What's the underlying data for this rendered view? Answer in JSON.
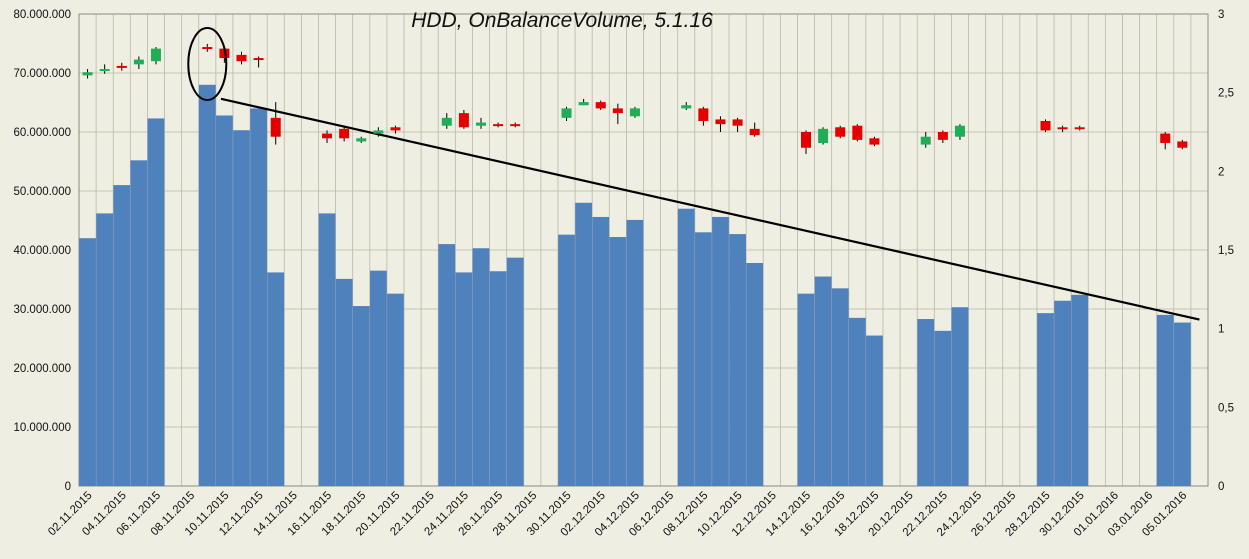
{
  "chart_data": {
    "type": "bar",
    "title": "HDD, OnBalanceVolume, 5.1.16",
    "xlabel": "",
    "ylabel": "",
    "y_left_range": [
      0,
      80000000
    ],
    "y_left_ticks": [
      "0",
      "10.000.000",
      "20.000.000",
      "30.000.000",
      "40.000.000",
      "50.000.000",
      "60.000.000",
      "70.000.000",
      "80.000.000"
    ],
    "y_right_range": [
      0,
      3
    ],
    "y_right_ticks": [
      "0",
      "0,5",
      "1",
      "1,5",
      "2",
      "2,5",
      "3"
    ],
    "x_tick_labels": [
      "02.11.2015",
      "04.11.2015",
      "06.11.2015",
      "08.11.2015",
      "10.11.2015",
      "12.11.2015",
      "14.11.2015",
      "16.11.2015",
      "18.11.2015",
      "20.11.2015",
      "22.11.2015",
      "24.11.2015",
      "26.11.2015",
      "28.11.2015",
      "30.11.2015",
      "02.12.2015",
      "04.12.2015",
      "06.12.2015",
      "08.12.2015",
      "10.12.2015",
      "12.12.2015",
      "14.12.2015",
      "16.12.2015",
      "18.12.2015",
      "20.12.2015",
      "22.12.2015",
      "24.12.2015",
      "26.12.2015",
      "28.12.2015",
      "30.12.2015",
      "01.01.2016",
      "03.01.2016",
      "05.01.2016"
    ],
    "x_dates": [
      "02.11.2015",
      "03.11.2015",
      "04.11.2015",
      "05.11.2015",
      "06.11.2015",
      "07.11.2015",
      "08.11.2015",
      "09.11.2015",
      "10.11.2015",
      "11.11.2015",
      "12.11.2015",
      "13.11.2015",
      "14.11.2015",
      "15.11.2015",
      "16.11.2015",
      "17.11.2015",
      "18.11.2015",
      "19.11.2015",
      "20.11.2015",
      "21.11.2015",
      "22.11.2015",
      "23.11.2015",
      "24.11.2015",
      "25.11.2015",
      "26.11.2015",
      "27.11.2015",
      "28.11.2015",
      "29.11.2015",
      "30.11.2015",
      "01.12.2015",
      "02.12.2015",
      "03.12.2015",
      "04.12.2015",
      "05.12.2015",
      "06.12.2015",
      "07.12.2015",
      "08.12.2015",
      "09.12.2015",
      "10.12.2015",
      "11.12.2015",
      "12.12.2015",
      "13.12.2015",
      "14.12.2015",
      "15.12.2015",
      "16.12.2015",
      "17.12.2015",
      "18.12.2015",
      "19.12.2015",
      "20.12.2015",
      "21.12.2015",
      "22.12.2015",
      "23.12.2015",
      "24.12.2015",
      "25.12.2015",
      "26.12.2015",
      "27.12.2015",
      "28.12.2015",
      "29.12.2015",
      "30.12.2015",
      "31.12.2015",
      "01.01.2016",
      "02.01.2016",
      "03.01.2016",
      "04.01.2016",
      "05.01.2016",
      "06.01.2016"
    ],
    "series": [
      {
        "values": [
          42000000,
          46200000,
          51000000,
          55200000,
          62300000,
          null,
          null,
          68000000,
          62800000,
          60300000,
          64000000,
          36200000,
          null,
          null,
          46200000,
          35100000,
          30500000,
          36500000,
          32600000,
          null,
          null,
          41000000,
          36200000,
          40300000,
          36400000,
          38700000,
          null,
          null,
          42600000,
          48000000,
          45600000,
          42200000,
          45100000,
          null,
          null,
          47000000,
          43000000,
          45600000,
          42700000,
          37800000,
          null,
          null,
          32600000,
          35500000,
          33500000,
          28500000,
          25500000,
          null,
          null,
          28300000,
          26300000,
          30300000,
          null,
          null,
          null,
          null,
          29300000,
          31400000,
          32400000,
          null,
          null,
          null,
          null,
          29000000,
          27700000,
          null
        ]
      },
      {
        "candles": [
          {
            "date": "02.11.2015",
            "open": 2.61,
            "close": 2.63,
            "high": 2.65,
            "low": 2.59
          },
          {
            "date": "03.11.2015",
            "open": 2.64,
            "close": 2.65,
            "high": 2.68,
            "low": 2.62
          },
          {
            "date": "04.11.2015",
            "open": 2.67,
            "close": 2.66,
            "high": 2.69,
            "low": 2.64
          },
          {
            "date": "05.11.2015",
            "open": 2.68,
            "close": 2.71,
            "high": 2.73,
            "low": 2.65
          },
          {
            "date": "06.11.2015",
            "open": 2.7,
            "close": 2.78,
            "high": 2.79,
            "low": 2.68
          },
          {
            "date": "09.11.2015",
            "open": 2.79,
            "close": 2.78,
            "high": 2.81,
            "low": 2.76
          },
          {
            "date": "10.11.2015",
            "open": 2.78,
            "close": 2.72,
            "high": 2.79,
            "low": 2.69
          },
          {
            "date": "11.11.2015",
            "open": 2.74,
            "close": 2.7,
            "high": 2.76,
            "low": 2.68
          },
          {
            "date": "12.11.2015",
            "open": 2.72,
            "close": 2.71,
            "high": 2.73,
            "low": 2.66
          },
          {
            "date": "13.11.2015",
            "open": 2.34,
            "close": 2.22,
            "high": 2.44,
            "low": 2.17
          },
          {
            "date": "16.11.2015",
            "open": 2.24,
            "close": 2.21,
            "high": 2.26,
            "low": 2.18
          },
          {
            "date": "17.11.2015",
            "open": 2.27,
            "close": 2.21,
            "high": 2.29,
            "low": 2.19
          },
          {
            "date": "18.11.2015",
            "open": 2.19,
            "close": 2.21,
            "high": 2.22,
            "low": 2.18
          },
          {
            "date": "19.11.2015",
            "open": 2.24,
            "close": 2.26,
            "high": 2.28,
            "low": 2.22
          },
          {
            "date": "20.11.2015",
            "open": 2.28,
            "close": 2.26,
            "high": 2.29,
            "low": 2.24
          },
          {
            "date": "23.11.2015",
            "open": 2.29,
            "close": 2.34,
            "high": 2.37,
            "low": 2.27
          },
          {
            "date": "24.11.2015",
            "open": 2.37,
            "close": 2.28,
            "high": 2.39,
            "low": 2.27
          },
          {
            "date": "25.11.2015",
            "open": 2.29,
            "close": 2.31,
            "high": 2.34,
            "low": 2.27
          },
          {
            "date": "26.11.2015",
            "open": 2.3,
            "close": 2.29,
            "high": 2.31,
            "low": 2.28
          },
          {
            "date": "27.11.2015",
            "open": 2.3,
            "close": 2.29,
            "high": 2.31,
            "low": 2.28
          },
          {
            "date": "30.11.2015",
            "open": 2.34,
            "close": 2.4,
            "high": 2.41,
            "low": 2.32
          },
          {
            "date": "01.12.2015",
            "open": 2.42,
            "close": 2.44,
            "high": 2.46,
            "low": 2.42
          },
          {
            "date": "02.12.2015",
            "open": 2.44,
            "close": 2.4,
            "high": 2.45,
            "low": 2.39
          },
          {
            "date": "03.12.2015",
            "open": 2.4,
            "close": 2.37,
            "high": 2.43,
            "low": 2.3
          },
          {
            "date": "04.12.2015",
            "open": 2.35,
            "close": 2.4,
            "high": 2.41,
            "low": 2.34
          },
          {
            "date": "07.12.2015",
            "open": 2.4,
            "close": 2.42,
            "high": 2.44,
            "low": 2.39
          },
          {
            "date": "08.12.2015",
            "open": 2.4,
            "close": 2.32,
            "high": 2.41,
            "low": 2.29
          },
          {
            "date": "09.12.2015",
            "open": 2.33,
            "close": 2.3,
            "high": 2.35,
            "low": 2.25
          },
          {
            "date": "10.12.2015",
            "open": 2.33,
            "close": 2.29,
            "high": 2.34,
            "low": 2.25
          },
          {
            "date": "11.12.2015",
            "open": 2.27,
            "close": 2.23,
            "high": 2.31,
            "low": 2.22
          },
          {
            "date": "14.12.2015",
            "open": 2.25,
            "close": 2.15,
            "high": 2.26,
            "low": 2.11
          },
          {
            "date": "15.12.2015",
            "open": 2.18,
            "close": 2.27,
            "high": 2.28,
            "low": 2.17
          },
          {
            "date": "16.12.2015",
            "open": 2.28,
            "close": 2.22,
            "high": 2.29,
            "low": 2.21
          },
          {
            "date": "17.12.2015",
            "open": 2.29,
            "close": 2.2,
            "high": 2.3,
            "low": 2.19
          },
          {
            "date": "18.12.2015",
            "open": 2.21,
            "close": 2.17,
            "high": 2.22,
            "low": 2.16
          },
          {
            "date": "21.12.2015",
            "open": 2.17,
            "close": 2.22,
            "high": 2.25,
            "low": 2.15
          },
          {
            "date": "22.12.2015",
            "open": 2.25,
            "close": 2.2,
            "high": 2.26,
            "low": 2.18
          },
          {
            "date": "23.12.2015",
            "open": 2.22,
            "close": 2.29,
            "high": 2.3,
            "low": 2.2
          },
          {
            "date": "28.12.2015",
            "open": 2.32,
            "close": 2.26,
            "high": 2.33,
            "low": 2.25
          },
          {
            "date": "29.12.2015",
            "open": 2.28,
            "close": 2.27,
            "high": 2.29,
            "low": 2.25
          },
          {
            "date": "30.12.2015",
            "open": 2.28,
            "close": 2.27,
            "high": 2.29,
            "low": 2.26
          },
          {
            "date": "04.01.2016",
            "open": 2.24,
            "close": 2.18,
            "high": 2.25,
            "low": 2.14
          },
          {
            "date": "05.01.2016",
            "open": 2.19,
            "close": 2.15,
            "high": 2.2,
            "low": 2.14
          }
        ]
      }
    ],
    "trendline": {
      "from_date": "10.11.2015",
      "from_value": 68000000,
      "to_date": "06.01.2016",
      "to_value": 27700000
    },
    "circle_annotation_date": "09.11.2015",
    "colors": {
      "volume": "#4f81bd",
      "candle_up": "#1fae55",
      "candle_down": "#e50000",
      "grid": "#b8b8a8",
      "background": "#efeee2"
    },
    "grid": true,
    "legend": "none"
  }
}
